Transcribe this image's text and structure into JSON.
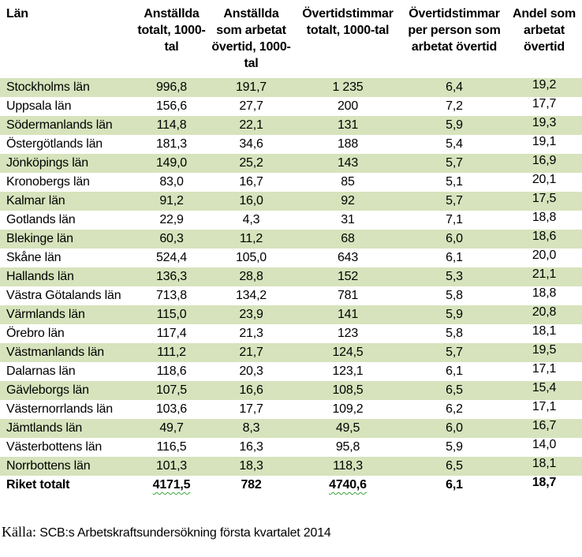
{
  "table": {
    "columns": [
      {
        "label": "Län"
      },
      {
        "label": "Anställda totalt, 1000-tal"
      },
      {
        "label": "Anställda som arbetat övertid, 1000-tal"
      },
      {
        "label": "Övertidstimmar totalt, 1000-tal"
      },
      {
        "label": "Övertidstimmar per person som arbetat övertid"
      },
      {
        "label": "Andel som arbetat övertid"
      }
    ],
    "rows": [
      [
        "Stockholms län",
        "996,8",
        "191,7",
        "1 235",
        "6,4",
        "19,2"
      ],
      [
        "Uppsala län",
        "156,6",
        "27,7",
        "200",
        "7,2",
        "17,7"
      ],
      [
        "Södermanlands län",
        "114,8",
        "22,1",
        "131",
        "5,9",
        "19,3"
      ],
      [
        "Östergötlands län",
        "181,3",
        "34,6",
        "188",
        "5,4",
        "19,1"
      ],
      [
        "Jönköpings län",
        "149,0",
        "25,2",
        "143",
        "5,7",
        "16,9"
      ],
      [
        "Kronobergs län",
        "83,0",
        "16,7",
        "85",
        "5,1",
        "20,1"
      ],
      [
        "Kalmar län",
        "91,2",
        "16,0",
        "92",
        "5,7",
        "17,5"
      ],
      [
        "Gotlands län",
        "22,9",
        "4,3",
        "31",
        "7,1",
        "18,8"
      ],
      [
        "Blekinge län",
        "60,3",
        "11,2",
        "68",
        "6,0",
        "18,6"
      ],
      [
        "Skåne län",
        "524,4",
        "105,0",
        "643",
        "6,1",
        "20,0"
      ],
      [
        "Hallands län",
        "136,3",
        "28,8",
        "152",
        "5,3",
        "21,1"
      ],
      [
        "Västra Götalands län",
        "713,8",
        "134,2",
        "781",
        "5,8",
        "18,8"
      ],
      [
        "Värmlands län",
        "115,0",
        "23,9",
        "141",
        "5,9",
        "20,8"
      ],
      [
        "Örebro län",
        "117,4",
        "21,3",
        "123",
        "5,8",
        "18,1"
      ],
      [
        "Västmanlands län",
        "111,2",
        "21,7",
        "124,5",
        "5,7",
        "19,5"
      ],
      [
        "Dalarnas län",
        "118,6",
        "20,3",
        "123,1",
        "6,1",
        "17,1"
      ],
      [
        "Gävleborgs län",
        "107,5",
        "16,6",
        "108,5",
        "6,5",
        "15,4"
      ],
      [
        "Västernorrlands län",
        "103,6",
        "17,7",
        "109,2",
        "6,2",
        "17,1"
      ],
      [
        "Jämtlands län",
        "49,7",
        "8,3",
        "49,5",
        "6,0",
        "16,7"
      ],
      [
        "Västerbottens län",
        "116,5",
        "16,3",
        "95,8",
        "5,9",
        "14,0"
      ],
      [
        "Norrbottens län",
        "101,3",
        "18,3",
        "118,3",
        "6,5",
        "18,1"
      ]
    ],
    "total_row": {
      "cells": [
        "Riket totalt",
        "4171,5",
        "782",
        "4740,6",
        "6,1",
        "18,7"
      ],
      "wavy_columns": [
        1,
        3
      ]
    }
  },
  "footer": {
    "source_prefix": "Källa:",
    "source_text": "SCB:s Arbetskraftsundersökning första kvartalet 2014"
  },
  "colors": {
    "row_band_green": "#d6e3bc",
    "wavy_underline_green": "#3aa234",
    "text": "#000000"
  }
}
